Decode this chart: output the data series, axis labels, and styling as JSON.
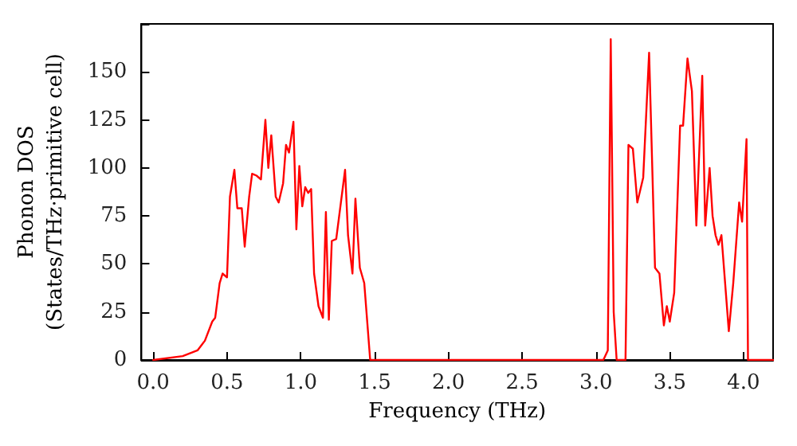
{
  "chart_data": {
    "type": "line",
    "xlabel": "Frequency (THz)",
    "ylabel": "Phonon DOS\n(States/THz·primitive cell)",
    "xlim": [
      -0.08,
      4.2
    ],
    "ylim": [
      0,
      175
    ],
    "xticks": [
      {
        "value": 0,
        "label": "0.0"
      },
      {
        "value": 0.5,
        "label": "0.5"
      },
      {
        "value": 1,
        "label": "1.0"
      },
      {
        "value": 1.5,
        "label": "1.5"
      },
      {
        "value": 2,
        "label": "2.0"
      },
      {
        "value": 2.5,
        "label": "2.5"
      },
      {
        "value": 3,
        "label": "3.0"
      },
      {
        "value": 3.5,
        "label": "3.5"
      },
      {
        "value": 4,
        "label": "4.0"
      }
    ],
    "yticks": [
      0,
      25,
      50,
      75,
      100,
      125,
      150
    ],
    "grid": false,
    "marker": "none",
    "line_style": "solid",
    "series": [
      {
        "color": "#ff0000",
        "x": [
          0,
          0.2,
          0.3,
          0.35,
          0.4,
          0.42,
          0.45,
          0.47,
          0.5,
          0.52,
          0.55,
          0.57,
          0.6,
          0.62,
          0.65,
          0.67,
          0.7,
          0.73,
          0.76,
          0.78,
          0.8,
          0.83,
          0.85,
          0.88,
          0.9,
          0.92,
          0.95,
          0.97,
          0.99,
          1.01,
          1.03,
          1.05,
          1.07,
          1.09,
          1.12,
          1.15,
          1.17,
          1.19,
          1.21,
          1.24,
          1.3,
          1.32,
          1.35,
          1.37,
          1.4,
          1.43,
          1.47,
          3.05,
          3.08,
          3.1,
          3.12,
          3.14,
          3.2,
          3.22,
          3.25,
          3.28,
          3.32,
          3.36,
          3.4,
          3.43,
          3.46,
          3.48,
          3.5,
          3.53,
          3.57,
          3.59,
          3.62,
          3.65,
          3.68,
          3.72,
          3.74,
          3.77,
          3.79,
          3.81,
          3.83,
          3.85,
          3.9,
          3.93,
          3.97,
          3.99,
          4.02,
          4.03,
          4.2
        ],
        "values": [
          0,
          2,
          5,
          10,
          20,
          22,
          40,
          45,
          43,
          85,
          99,
          79,
          79,
          59,
          85,
          97,
          96,
          94,
          125,
          100,
          117,
          85,
          82,
          92,
          112,
          108,
          124,
          68,
          101,
          80,
          90,
          87,
          89,
          45,
          28,
          22,
          77,
          21,
          62,
          63,
          99,
          65,
          45,
          84,
          48,
          40,
          0,
          0,
          5,
          167,
          25,
          0,
          0,
          112,
          110,
          82,
          95,
          160,
          48,
          45,
          18,
          28,
          20,
          35,
          122,
          122,
          157,
          140,
          70,
          148,
          70,
          100,
          75,
          65,
          60,
          65,
          15,
          40,
          82,
          72,
          115,
          0,
          0
        ]
      }
    ]
  }
}
